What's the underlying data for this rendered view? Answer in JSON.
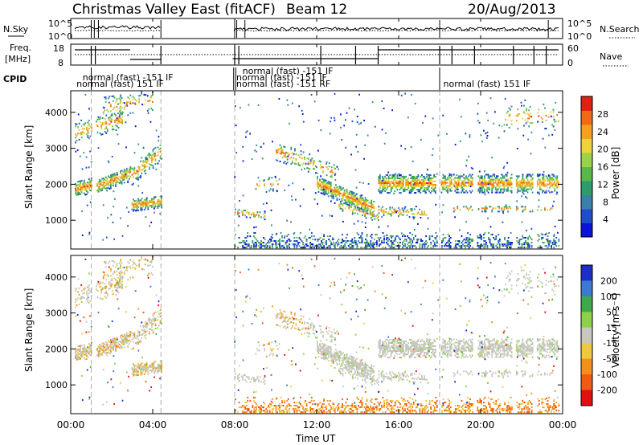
{
  "header": {
    "title": "Christmas Valley East (fitACF)",
    "beam": "Beam 12",
    "date": "20/Aug/2013"
  },
  "panels": {
    "nsky_label": "N.Sky",
    "nsearch_label": "N.Search",
    "freq_label": "Freq.",
    "freq_unit": "[MHz]",
    "nave_label": "Nave",
    "cpid_label": "CPID",
    "ticks_noise_left": [
      "10^5",
      "10^0"
    ],
    "ticks_noise_right": [
      "10^5",
      "10^0"
    ],
    "ticks_freq_left": [
      "18",
      "8"
    ],
    "ticks_freq_right": [
      "60",
      "0"
    ]
  },
  "cpid": {
    "labels": [
      {
        "text": "normal (fast) -151 IF",
        "t": 0.5,
        "row": 1
      },
      {
        "text": "normal (fast) 151 IF",
        "t": 0.2,
        "row": 2
      },
      {
        "text": "normal (fast) -151 IF",
        "t": 8.3,
        "row": 0
      },
      {
        "text": "normal (fast) -151 IF",
        "t": 8.0,
        "row": 1
      },
      {
        "text": "normal (fast) -151 RF",
        "t": 8.0,
        "row": 2
      },
      {
        "text": "normal (fast) 151 IF",
        "t": 18.1,
        "row": 2
      }
    ],
    "boundaries": [
      1.0,
      7.95,
      8.05,
      18.0
    ]
  },
  "chart_data": [
    {
      "type": "heatmap",
      "name": "Power",
      "ylabel": "Slant Range [km]",
      "ylim": [
        200,
        4600
      ],
      "yticks": [
        1000,
        2000,
        3000,
        4000
      ],
      "xlim": [
        0,
        24
      ],
      "colorbar_label": "Power [dB]",
      "colorbar_ticks": [
        "4",
        "8",
        "12",
        "16",
        "20",
        "24",
        "28"
      ],
      "colorbar_range": [
        0,
        32
      ],
      "colors": [
        "#0a14d8",
        "#1f4fc8",
        "#3a7fb0",
        "#2f9a6a",
        "#58b84a",
        "#9ad24a",
        "#f0d23a",
        "#f5a020",
        "#f26a14",
        "#e02010"
      ]
    },
    {
      "type": "heatmap",
      "name": "Velocity",
      "ylabel": "Slant Range [km]",
      "ylim": [
        200,
        4600
      ],
      "yticks": [
        1000,
        2000,
        3000,
        4000
      ],
      "xlim": [
        0,
        24
      ],
      "colorbar_label": "Velocity [m s⁻¹]",
      "colorbar_ticks": [
        "200",
        "100",
        "50",
        "15",
        "-15",
        "-50",
        "-100",
        "-200"
      ],
      "colors": [
        "#1c2ec8",
        "#3a7ad0",
        "#3fa84a",
        "#8fd04a",
        "#c8c8c0",
        "#f0c840",
        "#f2901a",
        "#f05a12",
        "#e01010"
      ]
    }
  ],
  "xaxis": {
    "ticks": [
      "00:00",
      "04:00",
      "08:00",
      "12:00",
      "16:00",
      "20:00",
      "00:00"
    ],
    "label": "Time UT"
  }
}
